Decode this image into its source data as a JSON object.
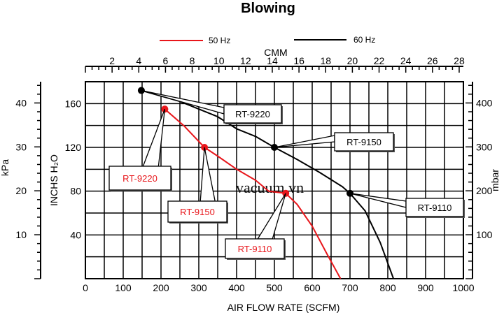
{
  "chart_data": {
    "type": "line",
    "title": "Blowing",
    "xlabel": "AIR FLOW RATE (SCFM)",
    "xlabel_top": "CMM",
    "ylabel": "INCHS H₂O",
    "ylabel_left_outer": "kPa",
    "ylabel_right": "mbar",
    "xlim": [
      0,
      1000
    ],
    "ylim": [
      0,
      180
    ],
    "x_ticks": [
      "0",
      "100",
      "200",
      "300",
      "400",
      "500",
      "600",
      "700",
      "800",
      "900",
      "1000"
    ],
    "top_ticks": [
      "2",
      "4",
      "6",
      "8",
      "10",
      "12",
      "14",
      "16",
      "18",
      "20",
      "22",
      "24",
      "26",
      "28"
    ],
    "y_ticks": [
      "40",
      "80",
      "120",
      "160"
    ],
    "kpa_ticks": [
      "10",
      "20",
      "30",
      "40"
    ],
    "mbar_ticks": [
      "100",
      "200",
      "300",
      "400"
    ],
    "grid": true,
    "legend_position": "top",
    "watermark": "vacuum.vn",
    "series": [
      {
        "name": "50 Hz",
        "color": "#e8161b",
        "points": [
          [
            210,
            155
          ],
          [
            260,
            140
          ],
          [
            315,
            120
          ],
          [
            350,
            112
          ],
          [
            400,
            100
          ],
          [
            450,
            90
          ],
          [
            485,
            80
          ],
          [
            530,
            78
          ],
          [
            560,
            68
          ],
          [
            600,
            48
          ],
          [
            640,
            22
          ],
          [
            675,
            0
          ]
        ],
        "markers": [
          {
            "x": 210,
            "y": 155,
            "label": "RT-9220"
          },
          {
            "x": 315,
            "y": 120,
            "label": "RT-9150"
          },
          {
            "x": 530,
            "y": 78,
            "label": "RT-9110"
          }
        ]
      },
      {
        "name": "60 Hz",
        "color": "#000000",
        "points": [
          [
            148,
            172
          ],
          [
            250,
            162
          ],
          [
            350,
            148
          ],
          [
            400,
            137
          ],
          [
            450,
            130
          ],
          [
            500,
            120
          ],
          [
            560,
            109
          ],
          [
            620,
            97
          ],
          [
            680,
            84
          ],
          [
            700,
            78
          ],
          [
            740,
            62
          ],
          [
            780,
            33
          ],
          [
            815,
            0
          ]
        ],
        "markers": [
          {
            "x": 148,
            "y": 172,
            "label": "RT-9220"
          },
          {
            "x": 500,
            "y": 120,
            "label": "RT-9150"
          },
          {
            "x": 700,
            "y": 78,
            "label": "RT-9110"
          }
        ]
      }
    ]
  }
}
